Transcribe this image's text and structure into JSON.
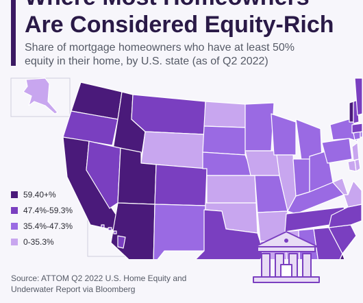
{
  "header": {
    "title_line1": "Where Most Homeowners",
    "title_line2": "Are Considered Equity-Rich",
    "subtitle_line1": "Share of mortgage homeowners who have at least 50%",
    "subtitle_line2": "equity in their home, by U.S. state (as of Q2 2022)"
  },
  "legend": [
    {
      "label": "59.40+%",
      "color": "#4a1a7a"
    },
    {
      "label": "47.4%-59.3%",
      "color": "#7a3fc0"
    },
    {
      "label": "35.4%-47.3%",
      "color": "#9a6ae3"
    },
    {
      "label": "0-35.3%",
      "color": "#c8a6ef"
    }
  ],
  "source": {
    "line1": "Source: ATTOM Q2 2022 U.S. Home Equity and",
    "line2": "Underwater Report via Bloomberg"
  },
  "colors": {
    "background": "#f7f6fb",
    "title": "#2a1a47",
    "accent_bar": "#3b1a63",
    "state_border": "#ffffff",
    "bank_fill": "#e8dcf5",
    "bank_stroke": "#7a3fc0"
  },
  "icons": {
    "illustration": "bank-building-icon"
  },
  "map_data": {
    "type": "choropleth",
    "categories": [
      "59.40+%",
      "47.4%-59.3%",
      "35.4%-47.3%",
      "0-35.3%"
    ],
    "states": {
      "WA": 0,
      "ID": 0,
      "UT": 0,
      "AZ": 0,
      "CA": 0,
      "FL": 0,
      "VT": 0,
      "OR": 1,
      "NV": 1,
      "MT": 1,
      "CO": 1,
      "TX": 1,
      "TN": 1,
      "GA": 1,
      "SC": 1,
      "NC": 1,
      "ME": 1,
      "NH": 1,
      "MA": 1,
      "HI": 1,
      "NM": 2,
      "SD": 2,
      "NE": 2,
      "MN": 2,
      "WI": 2,
      "MI": 2,
      "MO": 2,
      "IN": 2,
      "OH": 2,
      "KY": 2,
      "AL": 2,
      "NY": 2,
      "PA": 2,
      "RI": 2,
      "CT": 2,
      "AK": 3,
      "WY": 3,
      "ND": 3,
      "KS": 3,
      "OK": 3,
      "IA": 3,
      "IL": 3,
      "AR": 3,
      "LA": 3,
      "MS": 3,
      "WV": 3,
      "VA": 3,
      "MD": 3,
      "DE": 3,
      "NJ": 3
    }
  }
}
